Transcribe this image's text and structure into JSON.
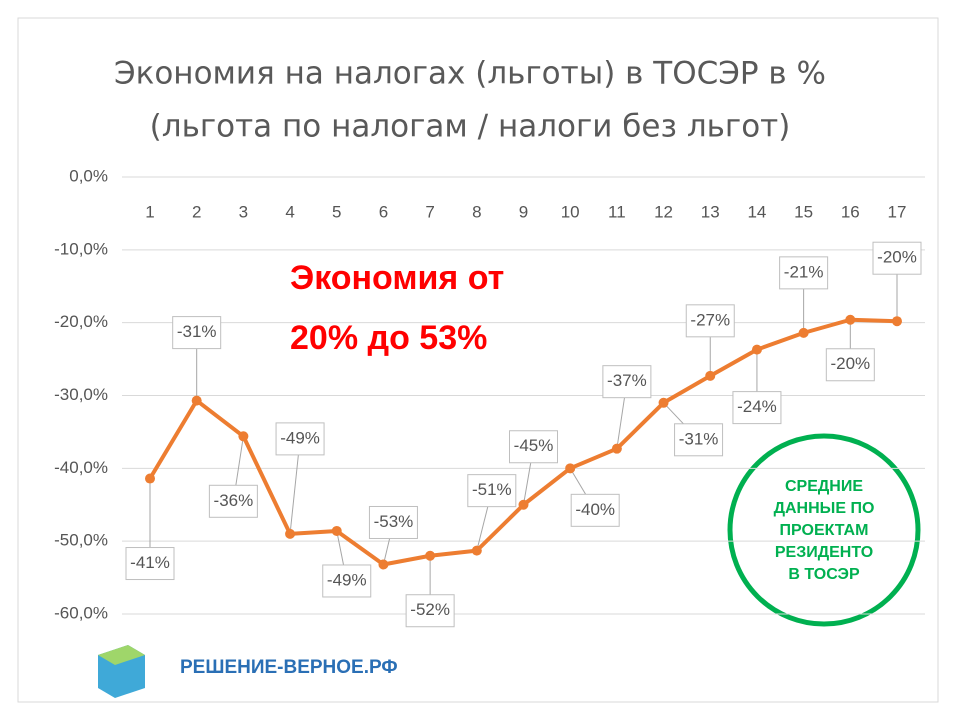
{
  "chart_data": {
    "type": "line",
    "title": "Экономия на налогах (льготы) в ТОСЭР в %",
    "subtitle": "(льгота по налогам / налоги без льгот)",
    "categories": [
      "1",
      "2",
      "3",
      "4",
      "5",
      "6",
      "7",
      "8",
      "9",
      "10",
      "11",
      "12",
      "13",
      "14",
      "15",
      "16",
      "17"
    ],
    "series": [
      {
        "color": "#ed7d31",
        "values": [
          -41.4,
          -30.7,
          -35.6,
          -49,
          -48.6,
          -53.2,
          -52,
          -51.3,
          -45,
          -40,
          -37.3,
          -31,
          -27.3,
          -23.7,
          -21.4,
          -19.6,
          -19.8
        ],
        "value_labels": [
          "-41%",
          "-31%",
          "-36%",
          "-49%",
          "-49%",
          "-53%",
          "-52%",
          "-51%",
          "-45%",
          "-40%",
          "-37%",
          "-31%",
          "-27%",
          "-24%",
          "-21%",
          "-20%",
          "-20%"
        ]
      }
    ],
    "ylim": [
      -60,
      0
    ],
    "yticks": [
      {
        "value": 0,
        "label": "0,0%"
      },
      {
        "value": -10,
        "label": "-10,0%"
      },
      {
        "value": -20,
        "label": "-20,0%"
      },
      {
        "value": -30,
        "label": "-30,0%"
      },
      {
        "value": -40,
        "label": "-40,0%"
      },
      {
        "value": -50,
        "label": "-50,0%"
      },
      {
        "value": -60,
        "label": "-60,0%"
      }
    ],
    "grid": true,
    "annotation": [
      "Экономия от",
      "20% до  53%"
    ],
    "badge": [
      "СРЕДНИЕ",
      "ДАННЫЕ ПО",
      "ПРОЕКТАМ",
      "РЕЗИДЕНТО",
      "В ТОСЭР"
    ],
    "logo": "РЕШЕНИЕ-ВЕРНОЕ.РФ"
  }
}
